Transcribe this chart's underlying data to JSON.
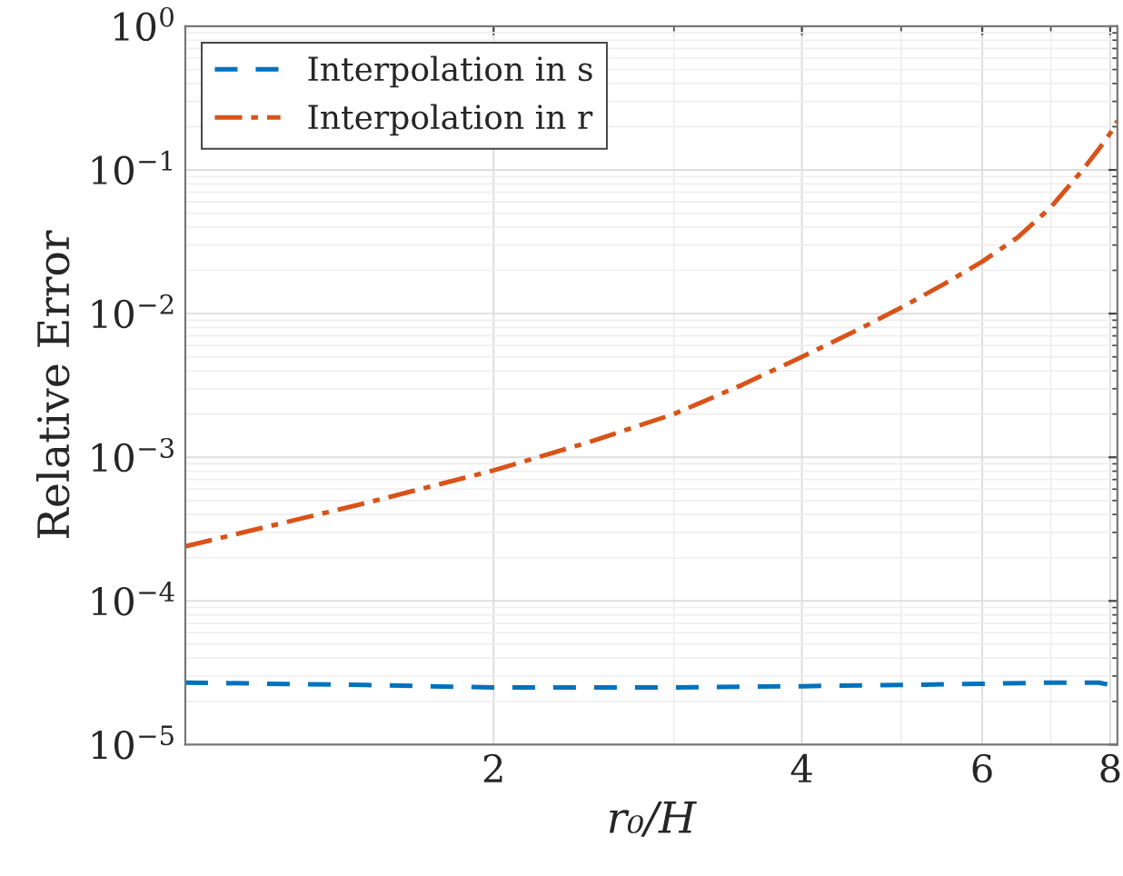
{
  "chart_data": {
    "type": "line",
    "xlabel": "r₀/H",
    "ylabel": "Relative Error",
    "log": "xy",
    "grid": true,
    "legend": "top left",
    "xlim": [
      1,
      8.13
    ],
    "xticks": [
      2,
      4,
      6,
      8
    ],
    "ylim": [
      1e-05,
      1
    ],
    "yticks": [
      {
        "value": 1e-05,
        "label": "10$^{−5}$"
      },
      {
        "value": 0.0001,
        "label": "10$^{−4}$"
      },
      {
        "value": 0.001,
        "label": "10$^{−3}$"
      },
      {
        "value": 0.01,
        "label": "10$^{−2}$"
      },
      {
        "value": 0.1,
        "label": "10$^{−1}$"
      },
      {
        "value": 1,
        "label": "10$^{0}$"
      }
    ],
    "series": [
      {
        "name": "Interpolation in s",
        "color": "#0072bd",
        "line_style": "dashed",
        "x": [
          1,
          1.5,
          2,
          2.5,
          3,
          4,
          5,
          6,
          7,
          7.8,
          8,
          8.13
        ],
        "values": [
          2.7e-05,
          2.6e-05,
          2.5e-05,
          2.5e-05,
          2.5e-05,
          2.55e-05,
          2.6e-05,
          2.65e-05,
          2.7e-05,
          2.7e-05,
          2.6e-05,
          2.4e-05
        ]
      },
      {
        "name": "Interpolation in r",
        "color": "#d95319",
        "line_style": "dashdot",
        "x": [
          1,
          1.5,
          2,
          2.5,
          3,
          3.5,
          4,
          4.5,
          5,
          5.5,
          6,
          6.5,
          7,
          7.5,
          7.8,
          8,
          8.13
        ],
        "values": [
          0.00024,
          0.00048,
          0.00081,
          0.0013,
          0.002,
          0.0032,
          0.005,
          0.0075,
          0.011,
          0.016,
          0.023,
          0.034,
          0.055,
          0.098,
          0.14,
          0.18,
          0.22
        ]
      }
    ]
  }
}
